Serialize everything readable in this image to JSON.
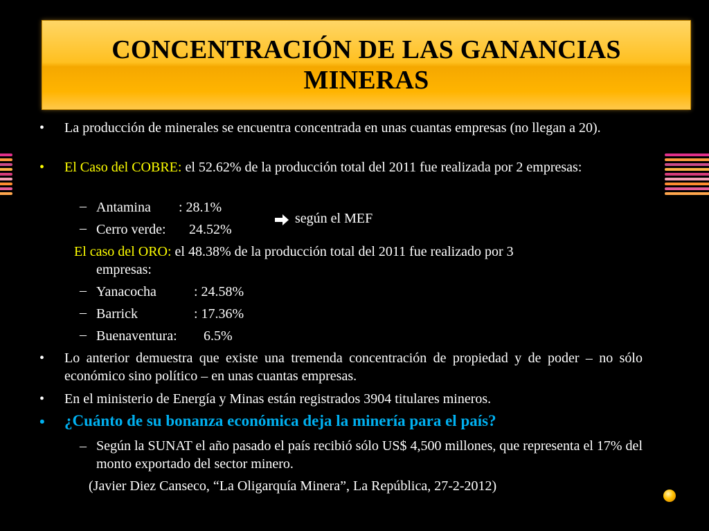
{
  "title": {
    "line1": "CONCENTRACIÓN DE LAS GANANCIAS",
    "line2": "MINERAS"
  },
  "colors": {
    "title_background": "#ffc020",
    "highlight_yellow": "#ffff00",
    "question_cyan": "#00b0f0",
    "slide_background": "#000000"
  },
  "bullet_symbol": "•",
  "dash_symbol": "–",
  "items": {
    "p1": {
      "text": "La producción de minerales se encuentra concentrada en unas cuantas empresas (no llegan a 20)."
    },
    "cobre": {
      "label": "El Caso del COBRE:",
      "text": " el 52.62% de la producción total del 2011 fue realizada por 2 empresas:",
      "sub": [
        {
          "name": "Antamina",
          "value": ": 28.1%"
        },
        {
          "name": "Cerro verde:",
          "value": "24.52%"
        }
      ],
      "mef": "según el MEF"
    },
    "oro": {
      "label": "El caso del ORO:",
      "text_first": " el 48.38% de la producción total del 2011 fue realizado por 3",
      "text_second": "empresas:",
      "sub": [
        {
          "name": "Yanacocha",
          "value": ": 24.58%"
        },
        {
          "name": "Barrick",
          "value": ": 17.36%"
        },
        {
          "name": "Buenaventura:",
          "value": "6.5%"
        }
      ]
    },
    "p3": {
      "text": "Lo anterior demuestra que existe una tremenda concentración de propiedad y de poder – no sólo económico sino político – en unas cuantas empresas."
    },
    "p4": {
      "text": "En el ministerio de Energía y Minas están registrados 3904 titulares mineros."
    },
    "question": {
      "text": "¿Cuánto de su bonanza económica deja la minería para el país?",
      "sub": "Según la SUNAT el año pasado el país recibió sólo US$ 4,500 millones, que representa el 17% del monto exportado del sector minero."
    },
    "citation": "(Javier Diez Canseco, “La Oligarquía Minera”, La República, 27-2-2012)"
  }
}
